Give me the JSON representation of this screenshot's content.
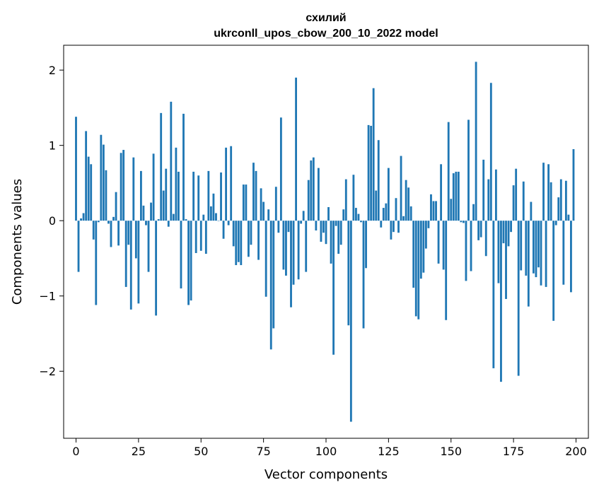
{
  "chart_data": {
    "type": "bar",
    "title": "схилий",
    "subtitle": "ukrconll_upos_cbow_200_10_2022 model",
    "xlabel": "Vector components",
    "ylabel": "Components values",
    "xlim": [
      -4.95,
      204.95
    ],
    "ylim": [
      -2.89,
      2.33
    ],
    "xticks": [
      0,
      25,
      50,
      75,
      100,
      125,
      150,
      175,
      200
    ],
    "yticks": [
      -2,
      -1,
      0,
      1,
      2
    ],
    "grid": false,
    "legend": "none",
    "bar_color": "#1f77b4",
    "x": [
      0,
      1,
      2,
      3,
      4,
      5,
      6,
      7,
      8,
      9,
      10,
      11,
      12,
      13,
      14,
      15,
      16,
      17,
      18,
      19,
      20,
      21,
      22,
      23,
      24,
      25,
      26,
      27,
      28,
      29,
      30,
      31,
      32,
      33,
      34,
      35,
      36,
      37,
      38,
      39,
      40,
      41,
      42,
      43,
      44,
      45,
      46,
      47,
      48,
      49,
      50,
      51,
      52,
      53,
      54,
      55,
      56,
      57,
      58,
      59,
      60,
      61,
      62,
      63,
      64,
      65,
      66,
      67,
      68,
      69,
      70,
      71,
      72,
      73,
      74,
      75,
      76,
      77,
      78,
      79,
      80,
      81,
      82,
      83,
      84,
      85,
      86,
      87,
      88,
      89,
      90,
      91,
      92,
      93,
      94,
      95,
      96,
      97,
      98,
      99,
      100,
      101,
      102,
      103,
      104,
      105,
      106,
      107,
      108,
      109,
      110,
      111,
      112,
      113,
      114,
      115,
      116,
      117,
      118,
      119,
      120,
      121,
      122,
      123,
      124,
      125,
      126,
      127,
      128,
      129,
      130,
      131,
      132,
      133,
      134,
      135,
      136,
      137,
      138,
      139,
      140,
      141,
      142,
      143,
      144,
      145,
      146,
      147,
      148,
      149,
      150,
      151,
      152,
      153,
      154,
      155,
      156,
      157,
      158,
      159,
      160,
      161,
      162,
      163,
      164,
      165,
      166,
      167,
      168,
      169,
      170,
      171,
      172,
      173,
      174,
      175,
      176,
      177,
      178,
      179,
      180,
      181,
      182,
      183,
      184,
      185,
      186,
      187,
      188,
      189,
      190,
      191,
      192,
      193,
      194,
      195,
      196,
      197,
      198,
      199
    ],
    "values": [
      1.38,
      -0.68,
      0.03,
      0.1,
      1.19,
      0.85,
      0.75,
      -0.25,
      -1.12,
      -0.02,
      1.14,
      1.01,
      0.67,
      -0.04,
      -0.35,
      0.05,
      0.38,
      -0.33,
      0.9,
      0.94,
      -0.88,
      -0.32,
      -1.18,
      0.84,
      -0.5,
      -1.1,
      0.66,
      0.2,
      -0.06,
      -0.68,
      0.24,
      0.89,
      -1.26,
      0.02,
      1.43,
      0.4,
      0.69,
      -0.08,
      1.58,
      0.09,
      0.97,
      0.65,
      -0.9,
      1.42,
      0.02,
      -1.12,
      -1.06,
      0.65,
      -0.43,
      0.6,
      -0.4,
      0.08,
      -0.44,
      0.66,
      0.19,
      0.36,
      0.1,
      0.0,
      0.64,
      -0.24,
      0.97,
      -0.06,
      0.99,
      -0.34,
      -0.59,
      -0.55,
      -0.59,
      0.48,
      0.48,
      -0.48,
      -0.32,
      0.77,
      0.66,
      -0.52,
      0.43,
      0.25,
      -1.01,
      0.15,
      -1.71,
      -1.43,
      0.45,
      -0.16,
      1.37,
      -0.65,
      -0.73,
      -0.15,
      -1.15,
      -0.85,
      1.9,
      -0.78,
      -0.04,
      0.13,
      -0.68,
      0.54,
      0.8,
      0.84,
      -0.13,
      0.7,
      -0.28,
      -0.16,
      -0.31,
      0.18,
      -0.57,
      -1.78,
      -0.07,
      -0.44,
      -0.32,
      0.15,
      0.55,
      -1.39,
      -2.67,
      0.61,
      0.17,
      0.09,
      -0.02,
      -1.43,
      -0.63,
      1.27,
      1.26,
      1.76,
      0.4,
      1.07,
      -0.09,
      0.17,
      0.23,
      0.7,
      -0.25,
      -0.15,
      0.3,
      -0.16,
      0.86,
      0.06,
      0.54,
      0.44,
      0.19,
      -0.89,
      -1.27,
      -1.31,
      -0.77,
      -0.69,
      -0.37,
      -0.1,
      0.35,
      0.26,
      0.26,
      -0.57,
      0.75,
      -0.65,
      -1.32,
      1.31,
      0.29,
      0.63,
      0.65,
      0.65,
      -0.02,
      -0.03,
      -0.8,
      1.34,
      -0.67,
      0.22,
      2.11,
      -0.26,
      -0.22,
      0.81,
      -0.47,
      0.55,
      1.83,
      -1.96,
      0.68,
      -0.83,
      -2.14,
      -0.3,
      -1.04,
      -0.34,
      -0.15,
      0.47,
      0.69,
      -2.06,
      -0.66,
      0.52,
      -0.73,
      -1.14,
      0.25,
      -0.7,
      -0.75,
      -0.62,
      -0.86,
      0.77,
      -0.88,
      0.75,
      0.51,
      -1.33,
      -0.06,
      0.31,
      0.55,
      -0.85,
      0.53,
      0.08,
      -0.95,
      0.95
    ]
  }
}
